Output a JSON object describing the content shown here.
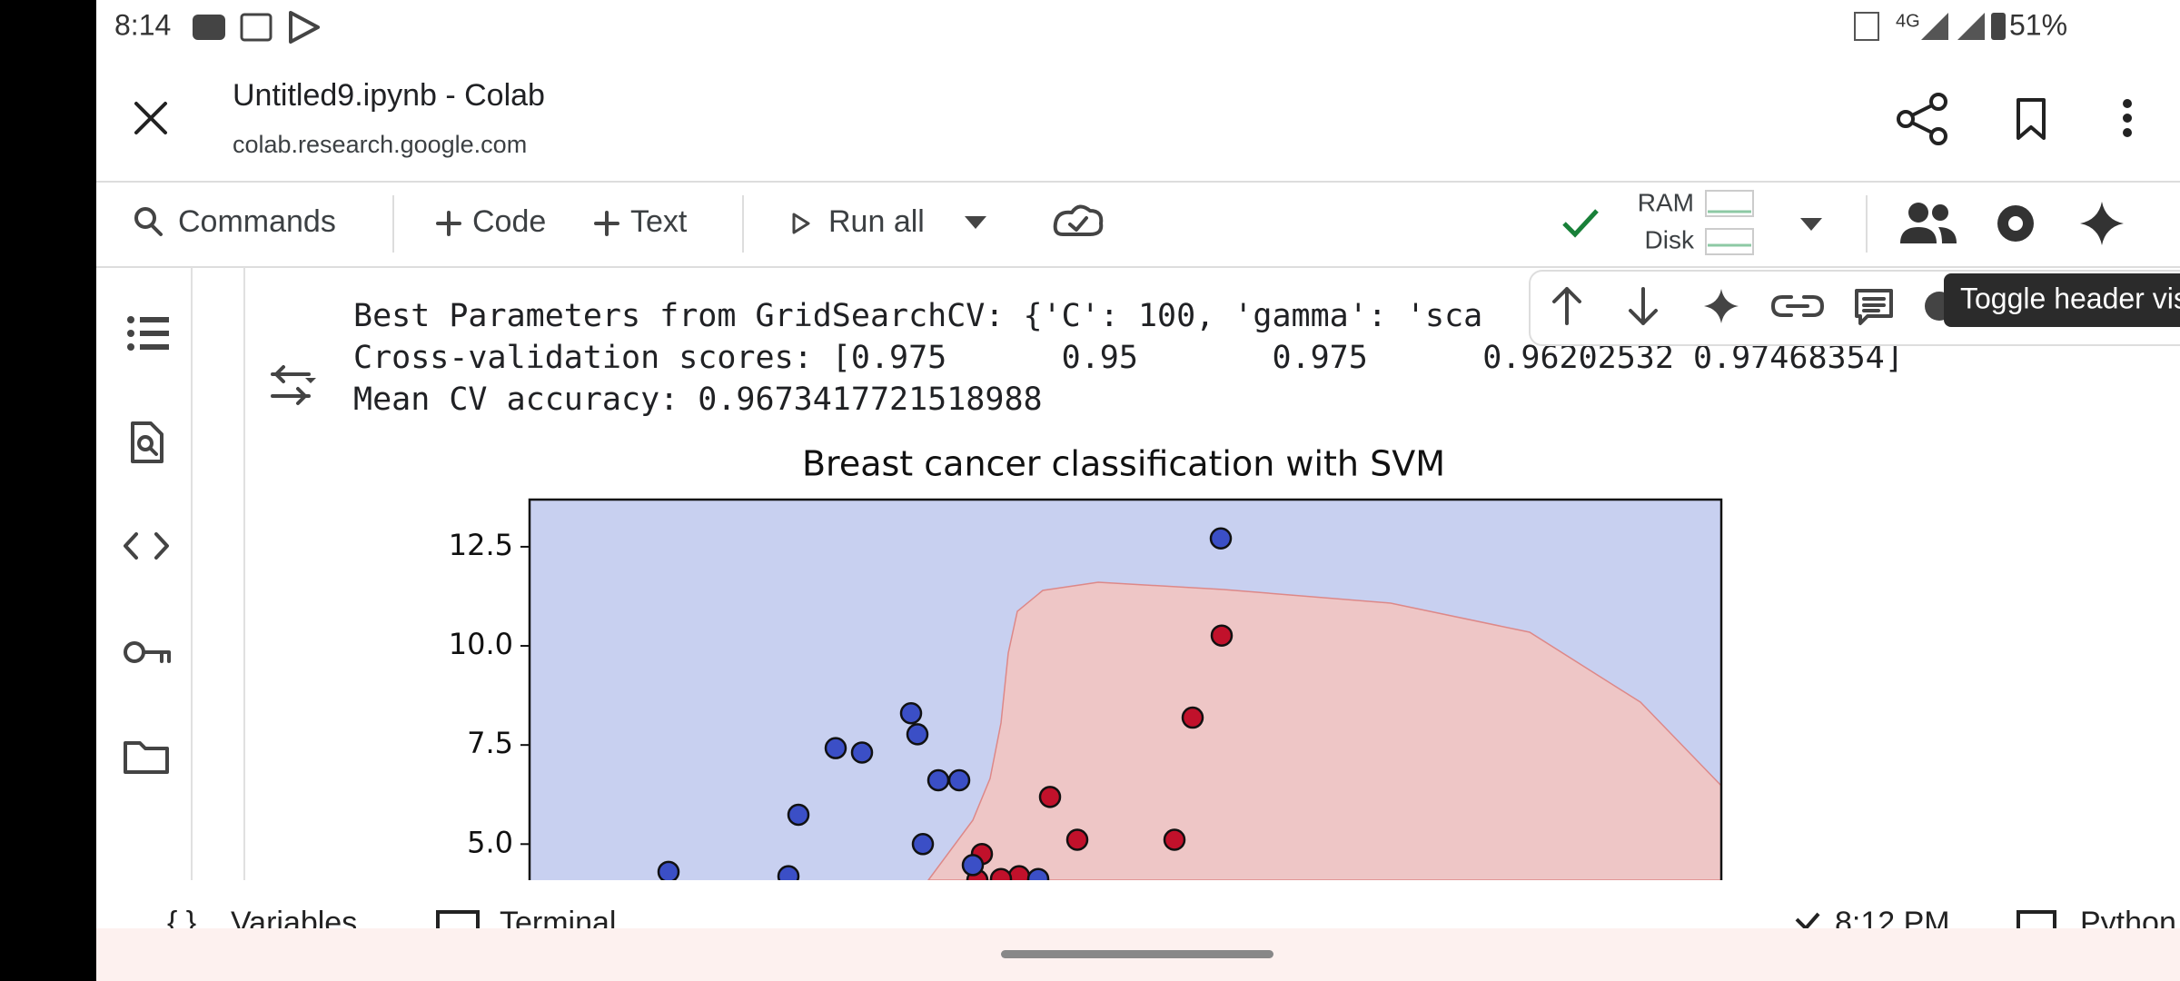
{
  "status_bar": {
    "time": "8:14",
    "network": "4G",
    "battery": "51%"
  },
  "header": {
    "title": "Untitled9.ipynb - Colab",
    "url": "colab.research.google.com"
  },
  "toolbar": {
    "commands": "Commands",
    "code": "Code",
    "text": "Text",
    "run_all": "Run all",
    "ram": "RAM",
    "disk": "Disk"
  },
  "output": {
    "lines": [
      "Best Parameters from GridSearchCV: {'C': 100, 'gamma': 'sca",
      "Cross-validation scores: [0.975      0.95       0.975      0.96202532 0.97468354]",
      "Mean CV accuracy: 0.9673417721518988"
    ]
  },
  "tooltip": "Toggle header vis",
  "chart_data": {
    "type": "scatter",
    "title": "Breast cancer classification with SVM",
    "ylim": [
      4.09,
      13.69
    ],
    "yticks": [
      {
        "value": 12.5,
        "label": "12.5"
      },
      {
        "value": 10,
        "label": "10.0"
      },
      {
        "value": 7.5,
        "label": "7.5"
      },
      {
        "value": 5,
        "label": "5.0"
      }
    ],
    "background_color": "#c8d0f0",
    "region_color": "#eec6c6",
    "series": [
      {
        "color": "#3b4fc6",
        "values": [
          12.71,
          8.3,
          7.77,
          7.42,
          7.31,
          5.74,
          6.61,
          6.61,
          5.0,
          4.3,
          4.19,
          4.47,
          4.12
        ]
      },
      {
        "color": "#c1112b",
        "values": [
          10.26,
          8.19,
          6.19,
          5.11,
          5.11,
          4.75,
          4.09,
          4.12,
          4.19
        ]
      }
    ]
  },
  "bottom_bar": {
    "variables": "Variables",
    "terminal": "Terminal",
    "status": "8:12 PM",
    "runtime": "Python"
  }
}
